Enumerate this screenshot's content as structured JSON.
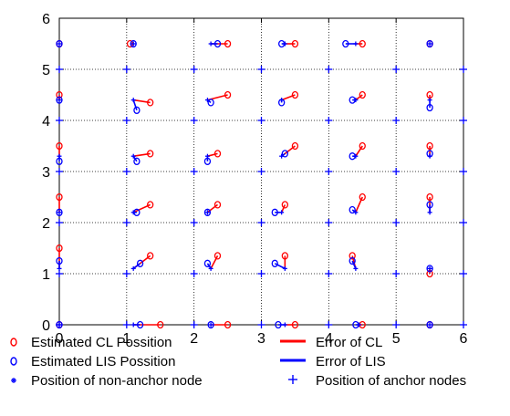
{
  "chart_data": {
    "type": "scatter",
    "xlim": [
      0,
      6
    ],
    "ylim": [
      0,
      6
    ],
    "xticks": [
      "0",
      "1",
      "2",
      "3",
      "4",
      "5",
      "6"
    ],
    "yticks": [
      "0",
      "1",
      "2",
      "3",
      "4",
      "5",
      "6"
    ],
    "grid": true,
    "legend_position": "bottom",
    "legend": {
      "cl_estimate": "Estimated CL Possition",
      "lis_estimate": "Estimated LIS Possition",
      "non_anchor": "Position of non-anchor node",
      "cl_error": "Error of CL",
      "lis_error": "Error of LIS",
      "anchor": "Position of anchor nodes"
    },
    "colors": {
      "cl": "#ff0000",
      "lis": "#0000ff",
      "node": "#0000ff"
    },
    "anchor_nodes": [
      [
        0,
        0
      ],
      [
        1,
        0
      ],
      [
        2,
        0
      ],
      [
        3,
        0
      ],
      [
        4,
        0
      ],
      [
        5,
        0
      ],
      [
        6,
        0
      ],
      [
        0,
        1
      ],
      [
        1,
        1
      ],
      [
        2,
        1
      ],
      [
        3,
        1
      ],
      [
        4,
        1
      ],
      [
        5,
        1
      ],
      [
        6,
        1
      ],
      [
        0,
        2
      ],
      [
        1,
        2
      ],
      [
        2,
        2
      ],
      [
        3,
        2
      ],
      [
        4,
        2
      ],
      [
        5,
        2
      ],
      [
        6,
        2
      ],
      [
        0,
        3
      ],
      [
        1,
        3
      ],
      [
        2,
        3
      ],
      [
        3,
        3
      ],
      [
        4,
        3
      ],
      [
        5,
        3
      ],
      [
        6,
        3
      ],
      [
        0,
        4
      ],
      [
        1,
        4
      ],
      [
        2,
        4
      ],
      [
        3,
        4
      ],
      [
        4,
        4
      ],
      [
        5,
        4
      ],
      [
        6,
        4
      ],
      [
        0,
        5
      ],
      [
        1,
        5
      ],
      [
        2,
        5
      ],
      [
        3,
        5
      ],
      [
        4,
        5
      ],
      [
        5,
        5
      ],
      [
        6,
        5
      ]
    ],
    "nodes": [
      {
        "true": [
          0,
          0
        ],
        "cl": [
          0,
          0
        ],
        "lis": [
          0,
          0
        ]
      },
      {
        "true": [
          1.1,
          0
        ],
        "cl": [
          1.5,
          0
        ],
        "lis": [
          1.2,
          0
        ]
      },
      {
        "true": [
          2.25,
          0
        ],
        "cl": [
          2.5,
          0
        ],
        "lis": [
          2.25,
          0
        ]
      },
      {
        "true": [
          3.35,
          0
        ],
        "cl": [
          3.5,
          0
        ],
        "lis": [
          3.25,
          0
        ]
      },
      {
        "true": [
          4.45,
          0
        ],
        "cl": [
          4.5,
          0
        ],
        "lis": [
          4.4,
          0
        ]
      },
      {
        "true": [
          5.5,
          0
        ],
        "cl": [
          5.5,
          0
        ],
        "lis": [
          5.5,
          0
        ]
      },
      {
        "true": [
          0,
          1.1
        ],
        "cl": [
          0,
          1.5
        ],
        "lis": [
          0,
          1.25
        ]
      },
      {
        "true": [
          1.1,
          1.1
        ],
        "cl": [
          1.35,
          1.35
        ],
        "lis": [
          1.2,
          1.2
        ]
      },
      {
        "true": [
          2.25,
          1.1
        ],
        "cl": [
          2.35,
          1.35
        ],
        "lis": [
          2.2,
          1.2
        ]
      },
      {
        "true": [
          3.35,
          1.1
        ],
        "cl": [
          3.35,
          1.35
        ],
        "lis": [
          3.2,
          1.2
        ]
      },
      {
        "true": [
          4.4,
          1.1
        ],
        "cl": [
          4.35,
          1.35
        ],
        "lis": [
          4.35,
          1.25
        ]
      },
      {
        "true": [
          5.5,
          1.1
        ],
        "cl": [
          5.5,
          1.0
        ],
        "lis": [
          5.5,
          1.1
        ]
      },
      {
        "true": [
          0,
          2.2
        ],
        "cl": [
          0,
          2.5
        ],
        "lis": [
          0,
          2.2
        ]
      },
      {
        "true": [
          1.1,
          2.2
        ],
        "cl": [
          1.35,
          2.35
        ],
        "lis": [
          1.15,
          2.2
        ]
      },
      {
        "true": [
          2.2,
          2.2
        ],
        "cl": [
          2.35,
          2.35
        ],
        "lis": [
          2.2,
          2.2
        ]
      },
      {
        "true": [
          3.3,
          2.2
        ],
        "cl": [
          3.35,
          2.35
        ],
        "lis": [
          3.2,
          2.2
        ]
      },
      {
        "true": [
          4.4,
          2.2
        ],
        "cl": [
          4.5,
          2.5
        ],
        "lis": [
          4.35,
          2.25
        ]
      },
      {
        "true": [
          5.5,
          2.2
        ],
        "cl": [
          5.5,
          2.5
        ],
        "lis": [
          5.5,
          2.35
        ]
      },
      {
        "true": [
          0,
          3.3
        ],
        "cl": [
          0,
          3.5
        ],
        "lis": [
          0,
          3.2
        ]
      },
      {
        "true": [
          1.1,
          3.3
        ],
        "cl": [
          1.35,
          3.35
        ],
        "lis": [
          1.15,
          3.2
        ]
      },
      {
        "true": [
          2.2,
          3.3
        ],
        "cl": [
          2.35,
          3.35
        ],
        "lis": [
          2.2,
          3.2
        ]
      },
      {
        "true": [
          3.3,
          3.3
        ],
        "cl": [
          3.5,
          3.5
        ],
        "lis": [
          3.35,
          3.35
        ]
      },
      {
        "true": [
          4.4,
          3.3
        ],
        "cl": [
          4.5,
          3.5
        ],
        "lis": [
          4.35,
          3.3
        ]
      },
      {
        "true": [
          5.5,
          3.3
        ],
        "cl": [
          5.5,
          3.5
        ],
        "lis": [
          5.5,
          3.35
        ]
      },
      {
        "true": [
          0,
          4.4
        ],
        "cl": [
          0,
          4.5
        ],
        "lis": [
          0,
          4.4
        ]
      },
      {
        "true": [
          1.1,
          4.4
        ],
        "cl": [
          1.35,
          4.35
        ],
        "lis": [
          1.15,
          4.2
        ]
      },
      {
        "true": [
          2.2,
          4.4
        ],
        "cl": [
          2.5,
          4.5
        ],
        "lis": [
          2.25,
          4.35
        ]
      },
      {
        "true": [
          3.3,
          4.4
        ],
        "cl": [
          3.5,
          4.5
        ],
        "lis": [
          3.3,
          4.35
        ]
      },
      {
        "true": [
          4.4,
          4.4
        ],
        "cl": [
          4.5,
          4.5
        ],
        "lis": [
          4.35,
          4.4
        ]
      },
      {
        "true": [
          5.5,
          4.4
        ],
        "cl": [
          5.5,
          4.5
        ],
        "lis": [
          5.5,
          4.25
        ]
      },
      {
        "true": [
          0,
          5.5
        ],
        "cl": [
          0,
          5.5
        ],
        "lis": [
          0,
          5.5
        ]
      },
      {
        "true": [
          1.1,
          5.5
        ],
        "cl": [
          1.05,
          5.5
        ],
        "lis": [
          1.1,
          5.5
        ]
      },
      {
        "true": [
          2.25,
          5.5
        ],
        "cl": [
          2.5,
          5.5
        ],
        "lis": [
          2.35,
          5.5
        ]
      },
      {
        "true": [
          3.35,
          5.5
        ],
        "cl": [
          3.5,
          5.5
        ],
        "lis": [
          3.3,
          5.5
        ]
      },
      {
        "true": [
          4.4,
          5.5
        ],
        "cl": [
          4.5,
          5.5
        ],
        "lis": [
          4.25,
          5.5
        ]
      },
      {
        "true": [
          5.5,
          5.5
        ],
        "cl": [
          5.5,
          5.5
        ],
        "lis": [
          5.5,
          5.5
        ]
      }
    ]
  }
}
